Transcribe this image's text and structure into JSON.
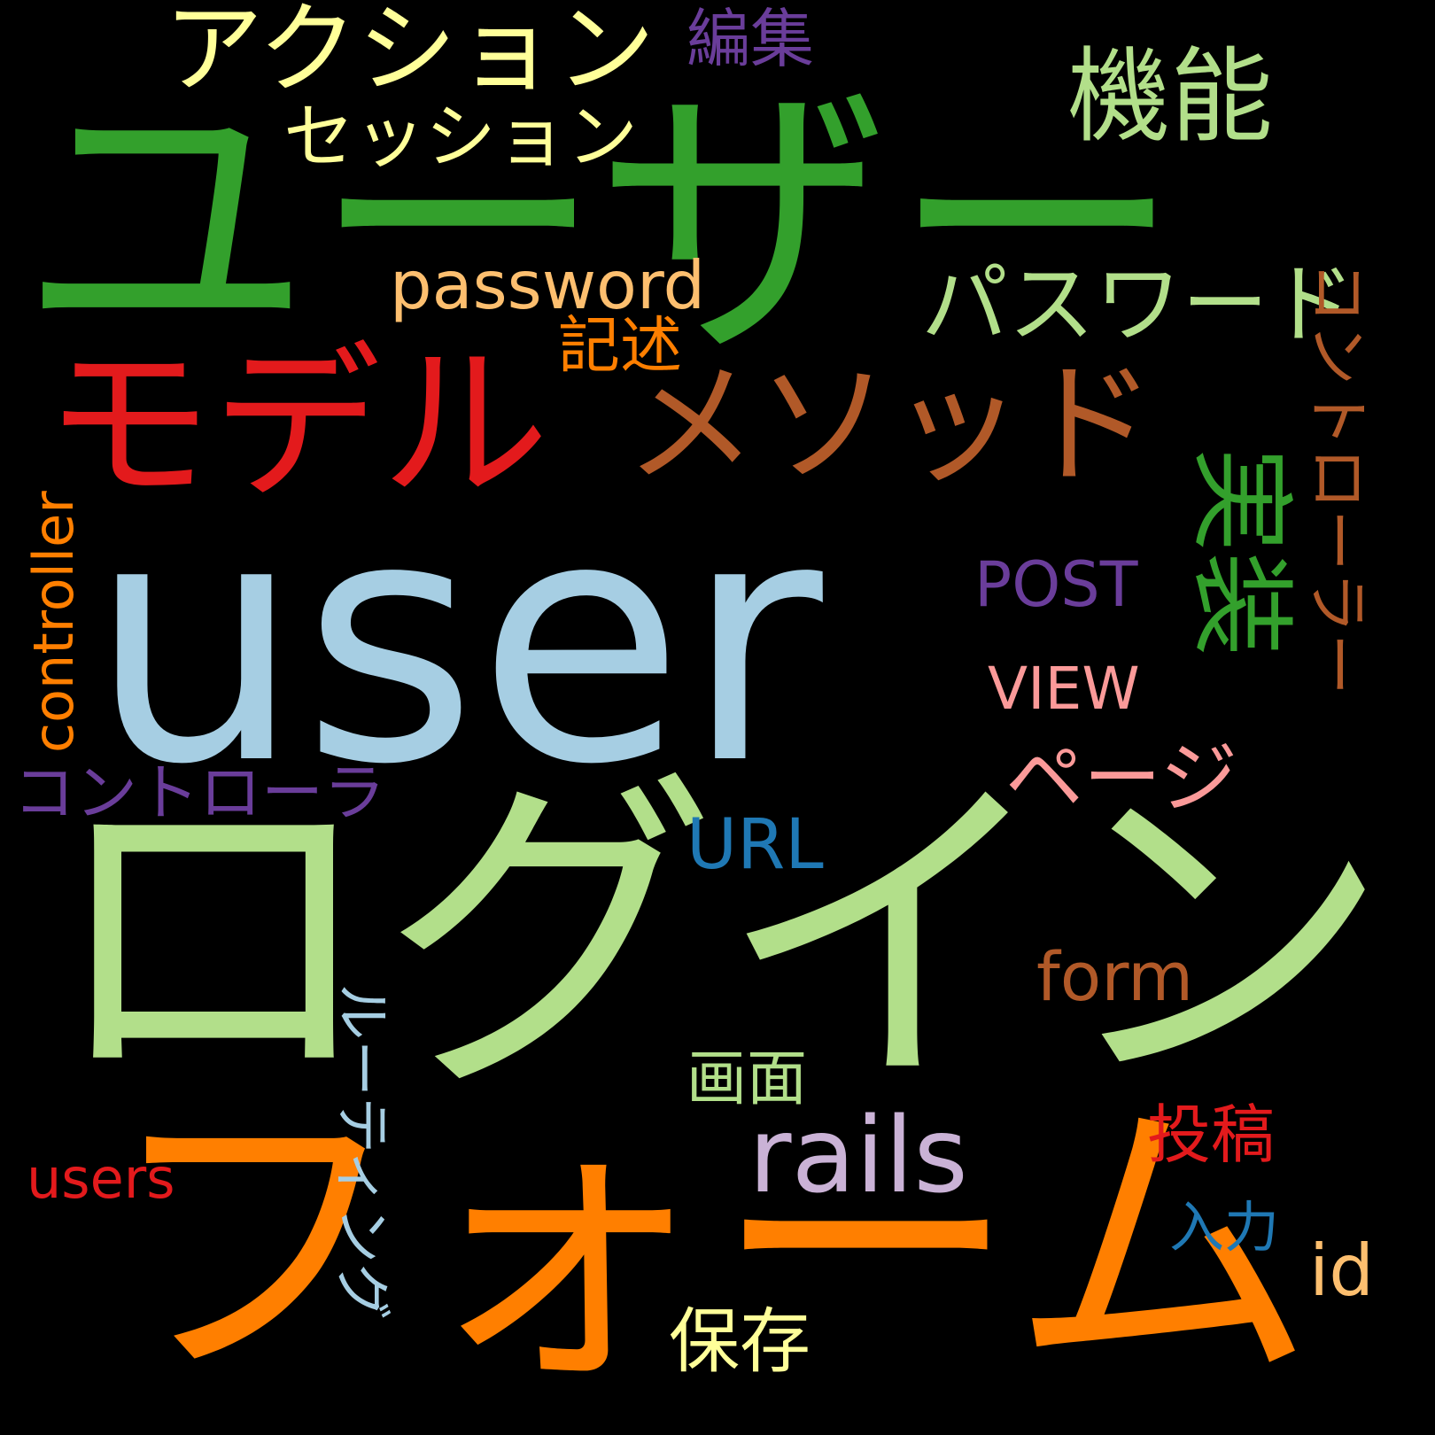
{
  "words": [
    {
      "key": "user",
      "text": "user",
      "color": "#a6cee3",
      "orientation": "horizontal"
    },
    {
      "key": "yuza",
      "text": "ユーザー",
      "color": "#33a02c",
      "orientation": "horizontal"
    },
    {
      "key": "login",
      "text": "ログイン",
      "color": "#b2df8a",
      "orientation": "horizontal"
    },
    {
      "key": "form_jp",
      "text": "フォーム",
      "color": "#ff7f00",
      "orientation": "horizontal"
    },
    {
      "key": "model",
      "text": "モデル",
      "color": "#e31a1c",
      "orientation": "horizontal"
    },
    {
      "key": "method",
      "text": "メソッド",
      "color": "#b15928",
      "orientation": "horizontal"
    },
    {
      "key": "action",
      "text": "アクション",
      "color": "#ffff99",
      "orientation": "horizontal"
    },
    {
      "key": "session",
      "text": "セッション",
      "color": "#ffff99",
      "orientation": "horizontal"
    },
    {
      "key": "edit",
      "text": "編集",
      "color": "#6a3d9a",
      "orientation": "horizontal"
    },
    {
      "key": "kinou",
      "text": "機能",
      "color": "#b2df8a",
      "orientation": "horizontal"
    },
    {
      "key": "password",
      "text": "password",
      "color": "#fdbf6f",
      "orientation": "horizontal"
    },
    {
      "key": "kijutsu",
      "text": "記述",
      "color": "#ff7f00",
      "orientation": "horizontal"
    },
    {
      "key": "passwordjp",
      "text": "パスワード",
      "color": "#b2df8a",
      "orientation": "horizontal"
    },
    {
      "key": "controllerjp",
      "text": "コントローラー",
      "color": "#b15928",
      "orientation": "vertical"
    },
    {
      "key": "jissou",
      "text": "実装",
      "color": "#33a02c",
      "orientation": "vertical"
    },
    {
      "key": "post",
      "text": "POST",
      "color": "#6a3d9a",
      "orientation": "horizontal"
    },
    {
      "key": "view",
      "text": "VIEW",
      "color": "#fb9a99",
      "orientation": "horizontal"
    },
    {
      "key": "page",
      "text": "ページ",
      "color": "#fb9a99",
      "orientation": "horizontal"
    },
    {
      "key": "controller",
      "text": "controller",
      "color": "#ff7f00",
      "orientation": "vertical"
    },
    {
      "key": "controlla",
      "text": "コントローラ",
      "color": "#6a3d9a",
      "orientation": "horizontal"
    },
    {
      "key": "url",
      "text": "URL",
      "color": "#1f78b4",
      "orientation": "horizontal"
    },
    {
      "key": "form",
      "text": "form",
      "color": "#b15928",
      "orientation": "horizontal"
    },
    {
      "key": "routing",
      "text": "ルーティング",
      "color": "#a6cee3",
      "orientation": "vertical"
    },
    {
      "key": "gamen",
      "text": "画面",
      "color": "#b2df8a",
      "orientation": "horizontal"
    },
    {
      "key": "rails",
      "text": "rails",
      "color": "#cab2d6",
      "orientation": "horizontal"
    },
    {
      "key": "toukou",
      "text": "投稿",
      "color": "#e31a1c",
      "orientation": "horizontal"
    },
    {
      "key": "users",
      "text": "users",
      "color": "#e31a1c",
      "orientation": "horizontal"
    },
    {
      "key": "nyuryoku",
      "text": "入力",
      "color": "#1f78b4",
      "orientation": "horizontal"
    },
    {
      "key": "id",
      "text": "id",
      "color": "#fdbf6f",
      "orientation": "horizontal"
    },
    {
      "key": "hozon",
      "text": "保存",
      "color": "#ffff99",
      "orientation": "horizontal"
    }
  ]
}
